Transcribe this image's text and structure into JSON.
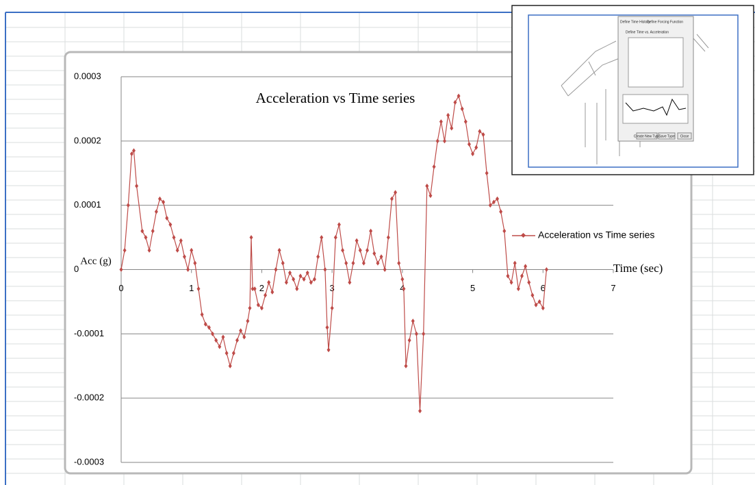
{
  "chart_data": {
    "type": "line",
    "title": "Acceleration vs Time series",
    "x_label": "Time  (sec)",
    "y_label": "Acc (g)",
    "x": [
      0,
      0.05,
      0.1,
      0.15,
      0.18,
      0.22,
      0.3,
      0.35,
      0.4,
      0.45,
      0.5,
      0.55,
      0.6,
      0.65,
      0.7,
      0.75,
      0.8,
      0.85,
      0.9,
      0.95,
      1.0,
      1.05,
      1.1,
      1.15,
      1.2,
      1.25,
      1.3,
      1.35,
      1.4,
      1.45,
      1.5,
      1.55,
      1.6,
      1.65,
      1.7,
      1.75,
      1.8,
      1.83,
      1.85,
      1.87,
      1.9,
      1.95,
      2.0,
      2.05,
      2.1,
      2.15,
      2.2,
      2.25,
      2.3,
      2.35,
      2.4,
      2.45,
      2.5,
      2.55,
      2.6,
      2.65,
      2.7,
      2.75,
      2.8,
      2.85,
      2.9,
      2.93,
      2.95,
      3.0,
      3.05,
      3.1,
      3.15,
      3.2,
      3.25,
      3.3,
      3.35,
      3.4,
      3.45,
      3.5,
      3.55,
      3.6,
      3.65,
      3.7,
      3.75,
      3.8,
      3.85,
      3.9,
      3.95,
      4.0,
      4.02,
      4.05,
      4.1,
      4.15,
      4.2,
      4.25,
      4.3,
      4.35,
      4.4,
      4.45,
      4.5,
      4.55,
      4.6,
      4.65,
      4.7,
      4.75,
      4.8,
      4.85,
      4.9,
      4.95,
      5.0,
      5.05,
      5.1,
      5.15,
      5.2,
      5.25,
      5.3,
      5.35,
      5.4,
      5.45,
      5.5,
      5.55,
      5.6,
      5.65,
      5.7,
      5.75,
      5.8,
      5.85,
      5.9,
      5.95,
      6.0,
      6.05
    ],
    "series": [
      {
        "name": "Acceleration vs Time series",
        "color": "#be4b48",
        "values": [
          0,
          3e-05,
          0.0001,
          0.00018,
          0.000185,
          0.00013,
          6e-05,
          5e-05,
          3e-05,
          6e-05,
          9e-05,
          0.00011,
          0.000105,
          8e-05,
          7e-05,
          5e-05,
          3e-05,
          4.5e-05,
          2e-05,
          0,
          3e-05,
          1e-05,
          -3e-05,
          -7e-05,
          -8.5e-05,
          -9e-05,
          -0.0001,
          -0.00011,
          -0.00012,
          -0.000105,
          -0.00013,
          -0.00015,
          -0.00013,
          -0.00011,
          -9.5e-05,
          -0.000105,
          -8e-05,
          -6e-05,
          5e-05,
          -3e-05,
          -3e-05,
          -5.5e-05,
          -6e-05,
          -4e-05,
          -2e-05,
          -3.5e-05,
          0,
          3e-05,
          1e-05,
          -2e-05,
          -5e-06,
          -1.5e-05,
          -3e-05,
          -1e-05,
          -1.5e-05,
          -5e-06,
          -2e-05,
          -1.5e-05,
          2e-05,
          5e-05,
          0,
          -9e-05,
          -0.000125,
          -6e-05,
          5e-05,
          7e-05,
          3e-05,
          1e-05,
          -2e-05,
          1e-05,
          4.5e-05,
          3e-05,
          1e-05,
          3e-05,
          6e-05,
          2.5e-05,
          1e-05,
          2e-05,
          0,
          5e-05,
          0.00011,
          0.00012,
          1e-05,
          -1.5e-05,
          -3e-05,
          -0.00015,
          -0.00011,
          -8e-05,
          -0.0001,
          -0.00022,
          -0.0001,
          0.00013,
          0.000115,
          0.00016,
          0.0002,
          0.00023,
          0.0002,
          0.00024,
          0.00022,
          0.00026,
          0.00027,
          0.00025,
          0.00023,
          0.000195,
          0.00018,
          0.00019,
          0.000215,
          0.00021,
          0.00015,
          0.0001,
          0.000105,
          0.00011,
          9e-05,
          6e-05,
          -1e-05,
          -2e-05,
          1e-05,
          -3e-05,
          -1e-05,
          5e-06,
          -2e-05,
          -4e-05,
          -5.5e-05,
          -5e-05,
          -6e-05,
          0
        ]
      }
    ],
    "xlim": [
      0,
      7
    ],
    "xticks": [
      0,
      1,
      2,
      3,
      4,
      5,
      6,
      7
    ],
    "ylim": [
      -0.0003,
      0.0003
    ],
    "yticks": [
      -0.0003,
      -0.0002,
      -0.0001,
      0,
      0.0001,
      0.0002,
      0.0003
    ],
    "grid": true,
    "legend": "right"
  },
  "inset": {
    "tabs": [
      "Define Time History",
      "Define Forcing Function"
    ],
    "group_title": "Define Time vs. Acceleration",
    "buttons": [
      "Create New Type",
      "Save Type",
      "Close"
    ]
  }
}
